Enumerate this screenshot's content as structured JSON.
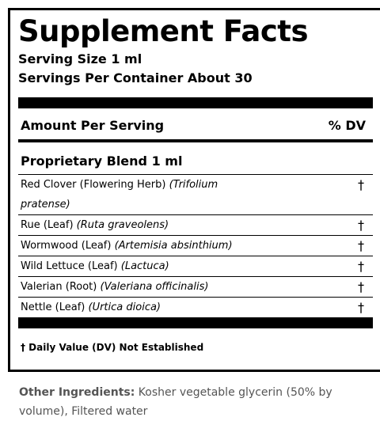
{
  "title": "Supplement Facts",
  "serving_size": "Serving Size 1 ml",
  "servings_per_container": "Servings Per Container About 30",
  "amount_header": "Amount Per Serving",
  "dv_header": "% DV",
  "blend": "Proprietary Blend 1 ml",
  "ingredients": [
    {
      "name": "Red Clover (Flowering Herb)",
      "latin": "(Trifolium pratense)",
      "dv": "†"
    },
    {
      "name": "Rue (Leaf)",
      "latin": "(Ruta graveolens)",
      "dv": "†"
    },
    {
      "name": "Wormwood (Leaf)",
      "latin": "(Artemisia absinthium)",
      "dv": "†"
    },
    {
      "name": "Wild Lettuce (Leaf)",
      "latin": "(Lactuca)",
      "dv": "†"
    },
    {
      "name": "Valerian (Root)",
      "latin": "(Valeriana officinalis)",
      "dv": "†"
    },
    {
      "name": "Nettle (Leaf)",
      "latin": "(Urtica dioica)",
      "dv": "†"
    }
  ],
  "footnote": "† Daily Value (DV) Not Established",
  "other_ingredients": {
    "label": "Other Ingredients:",
    "text": "Kosher vegetable glycerin (50% by volume), Filtered water"
  }
}
